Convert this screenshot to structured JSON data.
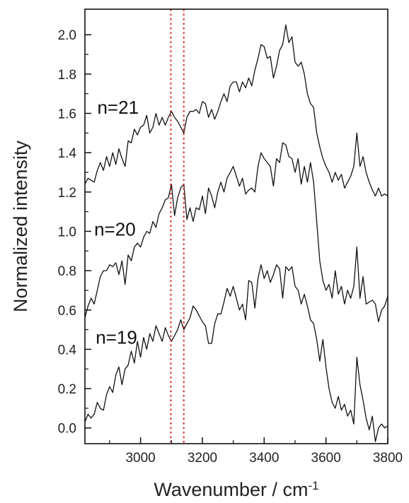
{
  "chart_data": {
    "type": "line",
    "title": "",
    "xlabel": "Wavenumber / cm",
    "xlabel_superscript": "-1",
    "ylabel": "Normalized intensity",
    "xlim": [
      2820,
      3800
    ],
    "ylim": [
      -0.08,
      2.13
    ],
    "grid": false,
    "legend": "none",
    "x_ticks": [
      3000,
      3200,
      3400,
      3600,
      3800
    ],
    "x_tick_labels": [
      "3000",
      "3200",
      "3400",
      "3600",
      "3800"
    ],
    "y_ticks": [
      0.0,
      0.2,
      0.4,
      0.6,
      0.8,
      1.0,
      1.2,
      1.4,
      1.6,
      1.8,
      2.0
    ],
    "y_tick_labels": [
      "0.0",
      "0.2",
      "0.4",
      "0.6",
      "0.8",
      "1.0",
      "1.2",
      "1.4",
      "1.6",
      "1.8",
      "2.0"
    ],
    "reference_lines": [
      {
        "x": 3098,
        "color": "#e02020",
        "style": "dotted"
      },
      {
        "x": 3140,
        "color": "#e02020",
        "style": "dotted"
      }
    ],
    "series": [
      {
        "label": "n=21",
        "label_at": [
          2860,
          1.63
        ],
        "color": "#111111",
        "points": [
          [
            2820,
            1.24
          ],
          [
            2830,
            1.27
          ],
          [
            2840,
            1.26
          ],
          [
            2850,
            1.25
          ],
          [
            2860,
            1.31
          ],
          [
            2870,
            1.35
          ],
          [
            2880,
            1.31
          ],
          [
            2890,
            1.38
          ],
          [
            2900,
            1.33
          ],
          [
            2910,
            1.4
          ],
          [
            2920,
            1.34
          ],
          [
            2930,
            1.42
          ],
          [
            2940,
            1.37
          ],
          [
            2950,
            1.33
          ],
          [
            2960,
            1.46
          ],
          [
            2970,
            1.45
          ],
          [
            2980,
            1.52
          ],
          [
            2990,
            1.49
          ],
          [
            3000,
            1.53
          ],
          [
            3010,
            1.54
          ],
          [
            3020,
            1.59
          ],
          [
            3030,
            1.5
          ],
          [
            3040,
            1.53
          ],
          [
            3050,
            1.6
          ],
          [
            3060,
            1.54
          ],
          [
            3070,
            1.58
          ],
          [
            3080,
            1.54
          ],
          [
            3090,
            1.58
          ],
          [
            3100,
            1.61
          ],
          [
            3110,
            1.58
          ],
          [
            3120,
            1.56
          ],
          [
            3130,
            1.53
          ],
          [
            3140,
            1.5
          ],
          [
            3150,
            1.58
          ],
          [
            3160,
            1.61
          ],
          [
            3170,
            1.61
          ],
          [
            3180,
            1.62
          ],
          [
            3190,
            1.6
          ],
          [
            3200,
            1.66
          ],
          [
            3210,
            1.65
          ],
          [
            3220,
            1.58
          ],
          [
            3230,
            1.62
          ],
          [
            3240,
            1.57
          ],
          [
            3250,
            1.61
          ],
          [
            3260,
            1.66
          ],
          [
            3270,
            1.7
          ],
          [
            3280,
            1.66
          ],
          [
            3290,
            1.74
          ],
          [
            3300,
            1.76
          ],
          [
            3310,
            1.76
          ],
          [
            3320,
            1.71
          ],
          [
            3330,
            1.76
          ],
          [
            3340,
            1.73
          ],
          [
            3350,
            1.78
          ],
          [
            3360,
            1.74
          ],
          [
            3370,
            1.82
          ],
          [
            3380,
            1.88
          ],
          [
            3390,
            1.95
          ],
          [
            3400,
            1.94
          ],
          [
            3410,
            1.88
          ],
          [
            3420,
            1.89
          ],
          [
            3430,
            1.78
          ],
          [
            3440,
            1.84
          ],
          [
            3450,
            1.92
          ],
          [
            3460,
            1.95
          ],
          [
            3470,
            2.05
          ],
          [
            3480,
            1.96
          ],
          [
            3490,
            1.99
          ],
          [
            3500,
            1.86
          ],
          [
            3510,
            1.84
          ],
          [
            3520,
            1.86
          ],
          [
            3530,
            1.8
          ],
          [
            3540,
            1.7
          ],
          [
            3550,
            1.65
          ],
          [
            3560,
            1.63
          ],
          [
            3570,
            1.5
          ],
          [
            3580,
            1.43
          ],
          [
            3590,
            1.37
          ],
          [
            3600,
            1.33
          ],
          [
            3610,
            1.3
          ],
          [
            3620,
            1.25
          ],
          [
            3630,
            1.3
          ],
          [
            3640,
            1.26
          ],
          [
            3650,
            1.29
          ],
          [
            3660,
            1.22
          ],
          [
            3670,
            1.25
          ],
          [
            3680,
            1.28
          ],
          [
            3690,
            1.33
          ],
          [
            3700,
            1.5
          ],
          [
            3710,
            1.33
          ],
          [
            3720,
            1.38
          ],
          [
            3730,
            1.3
          ],
          [
            3740,
            1.25
          ],
          [
            3750,
            1.21
          ],
          [
            3760,
            1.18
          ],
          [
            3770,
            1.22
          ],
          [
            3780,
            1.18
          ],
          [
            3790,
            1.19
          ],
          [
            3800,
            1.18
          ]
        ]
      },
      {
        "label": "n=20",
        "label_at": [
          2850,
          1.01
        ],
        "color": "#111111",
        "points": [
          [
            2820,
            0.56
          ],
          [
            2830,
            0.62
          ],
          [
            2840,
            0.66
          ],
          [
            2850,
            0.63
          ],
          [
            2860,
            0.7
          ],
          [
            2870,
            0.77
          ],
          [
            2880,
            0.8
          ],
          [
            2890,
            0.8
          ],
          [
            2900,
            0.83
          ],
          [
            2910,
            0.82
          ],
          [
            2920,
            0.84
          ],
          [
            2930,
            0.78
          ],
          [
            2940,
            0.85
          ],
          [
            2950,
            0.73
          ],
          [
            2960,
            0.88
          ],
          [
            2970,
            0.85
          ],
          [
            2980,
            0.92
          ],
          [
            2990,
            0.94
          ],
          [
            3000,
            0.92
          ],
          [
            3010,
            0.97
          ],
          [
            3020,
            1.0
          ],
          [
            3030,
            0.99
          ],
          [
            3040,
            1.05
          ],
          [
            3050,
            1.02
          ],
          [
            3060,
            1.09
          ],
          [
            3070,
            1.12
          ],
          [
            3080,
            1.16
          ],
          [
            3090,
            1.17
          ],
          [
            3100,
            1.24
          ],
          [
            3110,
            1.08
          ],
          [
            3120,
            1.17
          ],
          [
            3130,
            1.22
          ],
          [
            3140,
            1.24
          ],
          [
            3150,
            1.06
          ],
          [
            3160,
            1.12
          ],
          [
            3170,
            1.05
          ],
          [
            3180,
            1.12
          ],
          [
            3190,
            1.11
          ],
          [
            3200,
            1.18
          ],
          [
            3210,
            1.09
          ],
          [
            3220,
            1.22
          ],
          [
            3230,
            1.18
          ],
          [
            3240,
            1.12
          ],
          [
            3250,
            1.2
          ],
          [
            3260,
            1.25
          ],
          [
            3270,
            1.2
          ],
          [
            3280,
            1.27
          ],
          [
            3290,
            1.3
          ],
          [
            3300,
            1.33
          ],
          [
            3310,
            1.28
          ],
          [
            3320,
            1.23
          ],
          [
            3330,
            1.27
          ],
          [
            3340,
            1.19
          ],
          [
            3350,
            1.21
          ],
          [
            3360,
            1.22
          ],
          [
            3370,
            1.2
          ],
          [
            3380,
            1.33
          ],
          [
            3390,
            1.4
          ],
          [
            3400,
            1.37
          ],
          [
            3410,
            1.35
          ],
          [
            3420,
            1.33
          ],
          [
            3430,
            1.23
          ],
          [
            3440,
            1.37
          ],
          [
            3450,
            1.35
          ],
          [
            3460,
            1.45
          ],
          [
            3470,
            1.44
          ],
          [
            3480,
            1.38
          ],
          [
            3490,
            1.37
          ],
          [
            3500,
            1.3
          ],
          [
            3510,
            1.37
          ],
          [
            3520,
            1.24
          ],
          [
            3530,
            1.33
          ],
          [
            3540,
            1.25
          ],
          [
            3550,
            1.35
          ],
          [
            3560,
            1.25
          ],
          [
            3570,
            1.05
          ],
          [
            3580,
            0.85
          ],
          [
            3590,
            0.75
          ],
          [
            3600,
            0.7
          ],
          [
            3610,
            0.73
          ],
          [
            3620,
            0.66
          ],
          [
            3630,
            0.8
          ],
          [
            3640,
            0.68
          ],
          [
            3650,
            0.72
          ],
          [
            3660,
            0.63
          ],
          [
            3670,
            0.7
          ],
          [
            3680,
            0.66
          ],
          [
            3690,
            0.72
          ],
          [
            3700,
            0.92
          ],
          [
            3710,
            0.66
          ],
          [
            3720,
            0.77
          ],
          [
            3730,
            0.63
          ],
          [
            3740,
            0.64
          ],
          [
            3750,
            0.65
          ],
          [
            3760,
            0.63
          ],
          [
            3770,
            0.54
          ],
          [
            3780,
            0.6
          ],
          [
            3790,
            0.62
          ],
          [
            3800,
            0.67
          ]
        ]
      },
      {
        "label": "n=19",
        "label_at": [
          2855,
          0.46
        ],
        "color": "#111111",
        "points": [
          [
            2820,
            0.03
          ],
          [
            2830,
            0.07
          ],
          [
            2840,
            0.05
          ],
          [
            2850,
            0.07
          ],
          [
            2860,
            0.13
          ],
          [
            2870,
            0.1
          ],
          [
            2880,
            0.09
          ],
          [
            2890,
            0.17
          ],
          [
            2900,
            0.21
          ],
          [
            2910,
            0.18
          ],
          [
            2920,
            0.27
          ],
          [
            2930,
            0.31
          ],
          [
            2940,
            0.22
          ],
          [
            2950,
            0.3
          ],
          [
            2960,
            0.32
          ],
          [
            2970,
            0.39
          ],
          [
            2980,
            0.33
          ],
          [
            2990,
            0.44
          ],
          [
            3000,
            0.36
          ],
          [
            3010,
            0.46
          ],
          [
            3020,
            0.4
          ],
          [
            3030,
            0.48
          ],
          [
            3040,
            0.44
          ],
          [
            3050,
            0.52
          ],
          [
            3060,
            0.48
          ],
          [
            3070,
            0.44
          ],
          [
            3080,
            0.51
          ],
          [
            3090,
            0.47
          ],
          [
            3100,
            0.44
          ],
          [
            3110,
            0.47
          ],
          [
            3120,
            0.5
          ],
          [
            3130,
            0.55
          ],
          [
            3140,
            0.5
          ],
          [
            3150,
            0.53
          ],
          [
            3160,
            0.56
          ],
          [
            3170,
            0.62
          ],
          [
            3180,
            0.6
          ],
          [
            3190,
            0.57
          ],
          [
            3200,
            0.54
          ],
          [
            3210,
            0.52
          ],
          [
            3220,
            0.43
          ],
          [
            3230,
            0.43
          ],
          [
            3240,
            0.53
          ],
          [
            3250,
            0.58
          ],
          [
            3260,
            0.58
          ],
          [
            3270,
            0.64
          ],
          [
            3280,
            0.71
          ],
          [
            3290,
            0.67
          ],
          [
            3300,
            0.72
          ],
          [
            3310,
            0.66
          ],
          [
            3320,
            0.6
          ],
          [
            3330,
            0.63
          ],
          [
            3340,
            0.55
          ],
          [
            3350,
            0.75
          ],
          [
            3360,
            0.74
          ],
          [
            3370,
            0.61
          ],
          [
            3380,
            0.76
          ],
          [
            3390,
            0.83
          ],
          [
            3400,
            0.76
          ],
          [
            3410,
            0.8
          ],
          [
            3420,
            0.74
          ],
          [
            3430,
            0.78
          ],
          [
            3440,
            0.83
          ],
          [
            3450,
            0.81
          ],
          [
            3460,
            0.66
          ],
          [
            3470,
            0.82
          ],
          [
            3480,
            0.8
          ],
          [
            3490,
            0.82
          ],
          [
            3500,
            0.72
          ],
          [
            3510,
            0.7
          ],
          [
            3520,
            0.63
          ],
          [
            3530,
            0.68
          ],
          [
            3540,
            0.62
          ],
          [
            3550,
            0.55
          ],
          [
            3560,
            0.53
          ],
          [
            3570,
            0.45
          ],
          [
            3580,
            0.34
          ],
          [
            3590,
            0.45
          ],
          [
            3600,
            0.31
          ],
          [
            3610,
            0.2
          ],
          [
            3620,
            0.13
          ],
          [
            3630,
            0.1
          ],
          [
            3640,
            0.16
          ],
          [
            3650,
            0.09
          ],
          [
            3660,
            0.12
          ],
          [
            3670,
            0.06
          ],
          [
            3680,
            0.09
          ],
          [
            3690,
            0.02
          ],
          [
            3700,
            0.36
          ],
          [
            3710,
            0.22
          ],
          [
            3720,
            0.14
          ],
          [
            3730,
            0.05
          ],
          [
            3740,
            -0.01
          ],
          [
            3750,
            0.06
          ],
          [
            3760,
            -0.07
          ],
          [
            3770,
            0.0
          ],
          [
            3780,
            0.02
          ],
          [
            3790,
            0.0
          ],
          [
            3800,
            0.01
          ]
        ]
      }
    ]
  }
}
